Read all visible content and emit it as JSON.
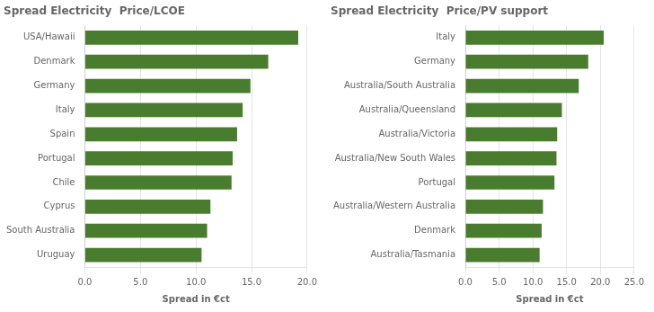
{
  "chart_data": [
    {
      "type": "bar",
      "orientation": "horizontal",
      "title": "Spread Electricity  Price/LCOE",
      "xlabel": "Spread in €ct",
      "color": "#4a7c2f",
      "grid": true,
      "categories": [
        "USA/Hawaii",
        "Denmark",
        "Germany",
        "Italy",
        "Spain",
        "Portugal",
        "Chile",
        "Cyprus",
        "South Australia",
        "Uruguay"
      ],
      "values": [
        19.2,
        16.5,
        14.9,
        14.2,
        13.7,
        13.3,
        13.2,
        11.3,
        11.0,
        10.5
      ],
      "xlim": [
        0,
        20
      ],
      "xticks": [
        {
          "value": 0,
          "label": "0.0"
        },
        {
          "value": 5,
          "label": "5.0"
        },
        {
          "value": 10,
          "label": "10.0"
        },
        {
          "value": 15,
          "label": "15.0"
        },
        {
          "value": 20,
          "label": "20.0"
        }
      ]
    },
    {
      "type": "bar",
      "orientation": "horizontal",
      "title": "Spread Electricity  Price/PV support",
      "xlabel": "Spread in €ct",
      "color": "#4a7c2f",
      "grid": true,
      "categories": [
        "Italy",
        "Germany",
        "Australia/South Australia",
        "Australia/Queensland",
        "Australia/Victoria",
        "Australia/New South Wales",
        "Portugal",
        "Australia/Western Australia",
        "Denmark",
        "Australia/Tasmania"
      ],
      "values": [
        20.5,
        18.2,
        16.8,
        14.3,
        13.6,
        13.5,
        13.2,
        11.5,
        11.3,
        11.0
      ],
      "xlim": [
        0,
        25
      ],
      "xticks": [
        {
          "value": 0,
          "label": "0.0"
        },
        {
          "value": 5,
          "label": "5.0"
        },
        {
          "value": 10,
          "label": "10.0"
        },
        {
          "value": 15,
          "label": "15.0"
        },
        {
          "value": 20,
          "label": "20.0"
        },
        {
          "value": 25,
          "label": "25.0"
        }
      ]
    }
  ]
}
